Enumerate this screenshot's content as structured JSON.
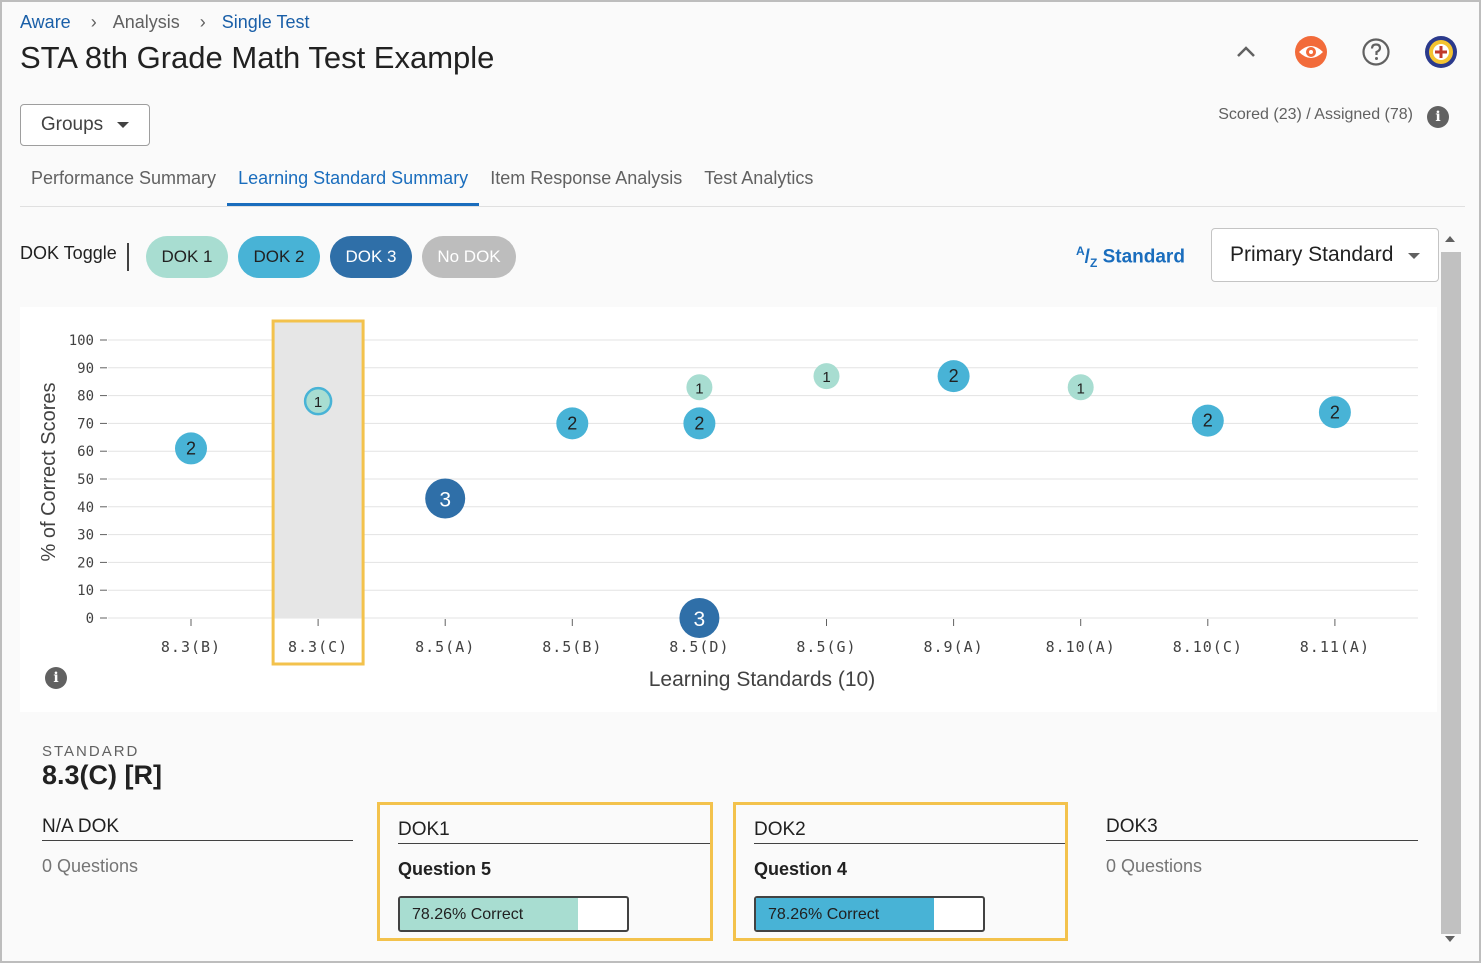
{
  "breadcrumb": [
    "Aware",
    "Analysis",
    "Single Test"
  ],
  "page_title": "STA 8th Grade Math Test Example",
  "header_icons": [
    "chevron-up-icon",
    "eye-icon",
    "help-icon",
    "school-logo"
  ],
  "groups_button": "Groups",
  "scored_text": "Scored (23) / Assigned (78)",
  "tabs": [
    "Performance Summary",
    "Learning Standard Summary",
    "Item Response Analysis",
    "Test Analytics"
  ],
  "active_tab": "Learning Standard Summary",
  "dok_toggle": {
    "label": "DOK Toggle",
    "pills": [
      {
        "label": "DOK 1",
        "color": "#a8ddd1",
        "text_color": "#212121"
      },
      {
        "label": "DOK 2",
        "color": "#48b3d6",
        "text_color": "#212121"
      },
      {
        "label": "DOK 3",
        "color": "#2f6fa8",
        "text_color": "#ffffff"
      },
      {
        "label": "No DOK",
        "color": "#bdbdbd",
        "text_color": "#ffffff"
      }
    ]
  },
  "sort_button": {
    "sup": "A",
    "sub": "Z",
    "label": "Standard"
  },
  "primary_select": "Primary Standard",
  "chart_data": {
    "type": "scatter",
    "xlabel": "Learning Standards (10)",
    "ylabel": "% of Correct Scores",
    "ylim": [
      0,
      100
    ],
    "yticks": [
      0,
      10,
      20,
      30,
      40,
      50,
      60,
      70,
      80,
      90,
      100
    ],
    "categories": [
      "8.3(B)",
      "8.3(C)",
      "8.5(A)",
      "8.5(B)",
      "8.5(D)",
      "8.5(G)",
      "8.9(A)",
      "8.10(A)",
      "8.10(C)",
      "8.11(A)"
    ],
    "highlighted_category": "8.3(C)",
    "grid": true,
    "colors": {
      "dok1": "#a8ddd1",
      "dok2": "#48b3d6",
      "dok3": "#2f6fa8"
    },
    "points": [
      {
        "category": "8.3(B)",
        "dok": 2,
        "y": 61
      },
      {
        "category": "8.3(C)",
        "dok": 1,
        "y": 78
      },
      {
        "category": "8.5(A)",
        "dok": 3,
        "y": 43
      },
      {
        "category": "8.5(B)",
        "dok": 2,
        "y": 70
      },
      {
        "category": "8.5(D)",
        "dok": 1,
        "y": 83
      },
      {
        "category": "8.5(D)",
        "dok": 2,
        "y": 70
      },
      {
        "category": "8.5(D)",
        "dok": 3,
        "y": 0
      },
      {
        "category": "8.5(G)",
        "dok": 1,
        "y": 87
      },
      {
        "category": "8.9(A)",
        "dok": 2,
        "y": 87
      },
      {
        "category": "8.10(A)",
        "dok": 1,
        "y": 83
      },
      {
        "category": "8.10(C)",
        "dok": 2,
        "y": 71
      },
      {
        "category": "8.11(A)",
        "dok": 2,
        "y": 74
      }
    ]
  },
  "detail": {
    "caption": "STANDARD",
    "standard": "8.3(C) [R]",
    "columns": [
      {
        "heading": "N/A DOK",
        "questions": "0 Questions"
      },
      {
        "heading": "DOK1",
        "question": "Question 5",
        "bar_text": "78.26% Correct",
        "percent": 78.26,
        "color": "#a8ddd1"
      },
      {
        "heading": "DOK2",
        "question": "Question 4",
        "bar_text": "78.26% Correct",
        "percent": 78.26,
        "color": "#48b3d6"
      },
      {
        "heading": "DOK3",
        "questions": "0 Questions"
      }
    ]
  }
}
